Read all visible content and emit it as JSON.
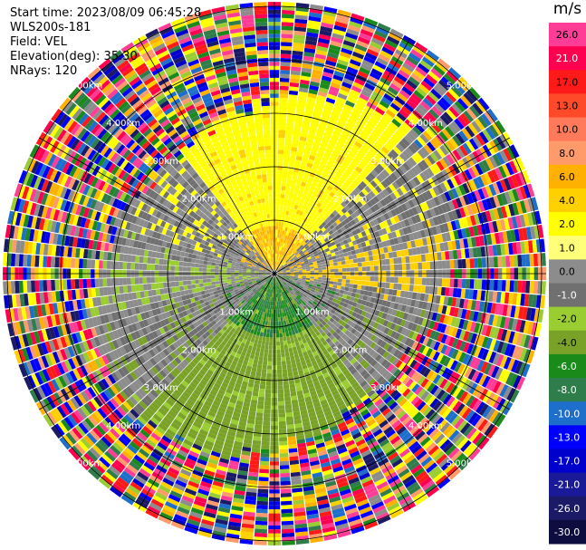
{
  "header": {
    "start_time": "Start time: 2023/08/09 06:45:28",
    "instrument": "WLS200s-181",
    "field": "Field: VEL",
    "elevation": "Elevation(deg): 35.30",
    "nrays": "NRays: 120"
  },
  "colorbar": {
    "unit": "m/s",
    "ticks": [
      "26.0",
      "21.0",
      "17.0",
      "13.0",
      "10.0",
      "8.0",
      "6.0",
      "4.0",
      "2.0",
      "1.0",
      "0.0",
      "-1.0",
      "-2.0",
      "-4.0",
      "-6.0",
      "-8.0",
      "-10.0",
      "-13.0",
      "-17.0",
      "-21.0",
      "-26.0",
      "-30.0"
    ],
    "colors": [
      "#ff3c96",
      "#ff0050",
      "#ff1a1a",
      "#ff4a2a",
      "#ff7a5a",
      "#ff9a6a",
      "#ffb000",
      "#ffd000",
      "#ffff00",
      "#ffff7a",
      "#8c8c8c",
      "#707070",
      "#9acd32",
      "#7aa228",
      "#1a8a1a",
      "#2e7d4a",
      "#1e6fcc",
      "#0000ff",
      "#0000cc",
      "#1a1a99",
      "#1a1a66",
      "#0d0d40"
    ]
  },
  "ranges": {
    "labels": [
      "1.00km",
      "2.00km",
      "3.00km",
      "4.00km",
      "5.00km"
    ]
  }
}
